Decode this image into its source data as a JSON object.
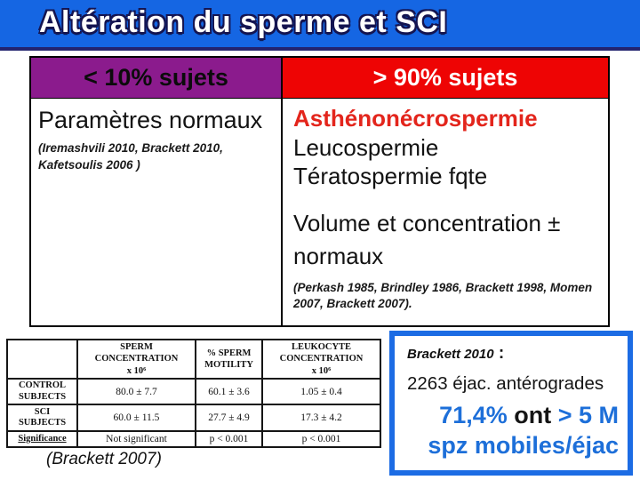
{
  "title": "Altération du sperme et SCI",
  "colors": {
    "banner_blue": "#1566e3",
    "banner_edge": "#23246f",
    "purple_header": "#8b1b8d",
    "red_header": "#ee0404",
    "red_text": "#e3251c",
    "box_blue": "#1c6ce4",
    "blue_text": "#1d6fd9"
  },
  "comparison_table": {
    "left_header": "< 10% sujets",
    "right_header": "> 90% sujets",
    "left_cell": {
      "main": "Paramètres normaux",
      "citation": "(Iremashvili 2010, Brackett 2010, Kafetsoulis 2006  )"
    },
    "right_cell": {
      "line1": "Asthénonécrospermie",
      "line2": "Leucospermie",
      "line3": "Tératospermie fqte",
      "line4": "Volume et concentration ± normaux",
      "citation": "(Perkash 1985, Brindley 1986, Brackett  1998, Momen 2007, Brackett 2007)."
    }
  },
  "study_table": {
    "col_headers": [
      [
        "SPERM",
        "CONCENTRATION",
        "x 10⁶"
      ],
      [
        "% SPERM",
        "MOTILITY"
      ],
      [
        "LEUKOCYTE",
        "CONCENTRATION",
        "x 10⁶"
      ]
    ],
    "rows": [
      {
        "label1": "CONTROL",
        "label2": "SUBJECTS",
        "values": [
          "80.0 ± 7.7",
          "60.1 ± 3.6",
          "1.05 ± 0.4"
        ]
      },
      {
        "label1": "SCI",
        "label2": "SUBJECTS",
        "values": [
          "60.0 ± 11.5",
          "27.7 ± 4.9",
          "17.3 ±  4.2"
        ]
      },
      {
        "label1": "Significance",
        "label2": "",
        "values": [
          "Not significant",
          "p < 0.001",
          "p < 0.001"
        ]
      }
    ],
    "caption": "(Brackett  2007)"
  },
  "highlight_box": {
    "source": "Brackett 2010",
    "colon": " :",
    "line1": "2263 éjac. antérogrades",
    "stat_blue1": "71,4%",
    "stat_black": " ont ",
    "stat_blue2": "> 5 M",
    "stat_line2": "spz mobiles/éjac"
  }
}
